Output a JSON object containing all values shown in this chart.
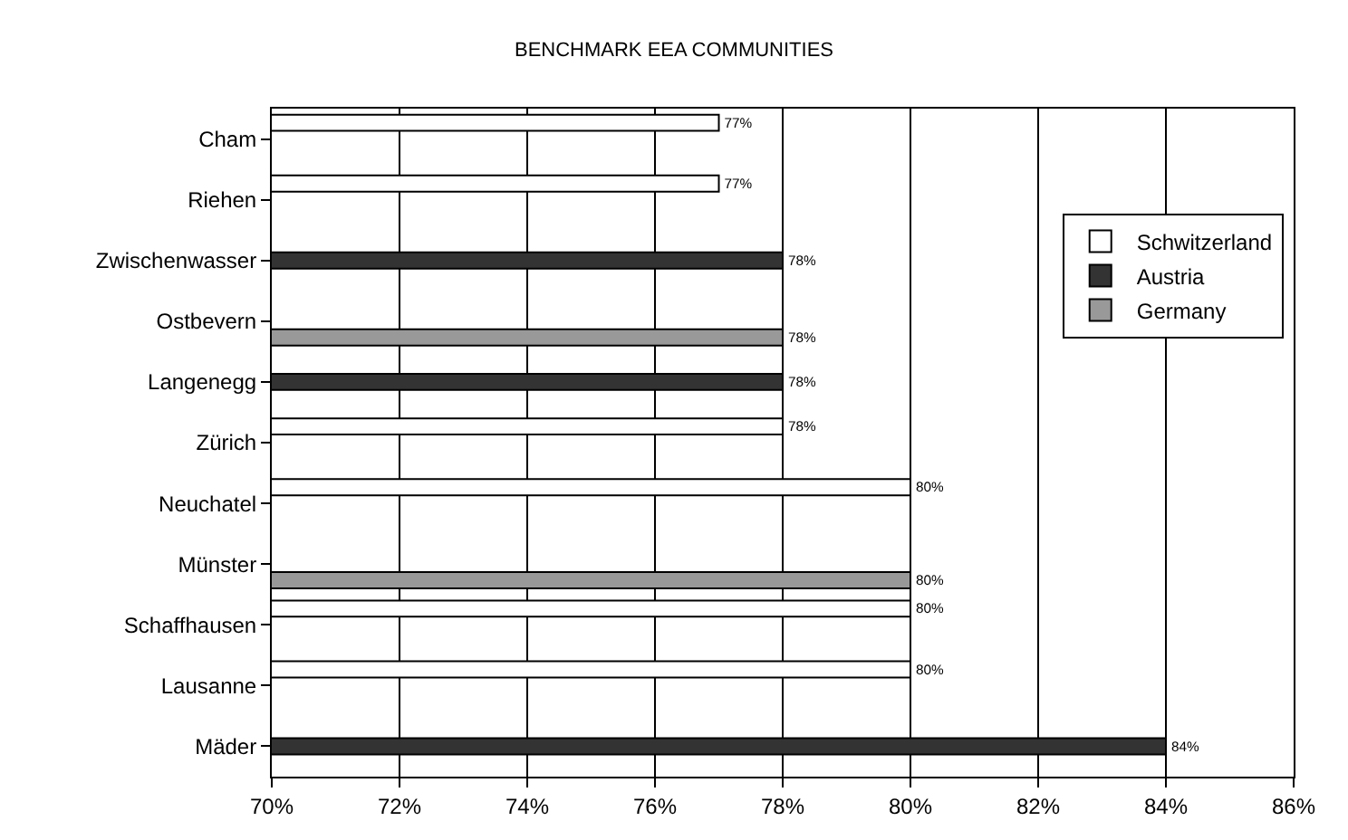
{
  "chart_data": {
    "type": "bar",
    "orientation": "horizontal",
    "title": "BENCHMARK EEA COMMUNITIES",
    "categories": [
      "Cham",
      "Riehen",
      "Zwischenwasser",
      "Ostbevern",
      "Langenegg",
      "Zürich",
      "Neuchatel",
      "Münster",
      "Schaffhausen",
      "Lausanne",
      "Mäder"
    ],
    "series": [
      {
        "name": "Schwitzerland",
        "color": "#ffffff",
        "values": [
          77,
          77,
          null,
          null,
          null,
          78,
          80,
          null,
          80,
          80,
          null
        ],
        "value_labels": [
          "77%",
          "77%",
          null,
          null,
          null,
          "78%",
          "80%",
          null,
          "80%",
          "80%",
          null
        ]
      },
      {
        "name": "Austria",
        "color": "#333333",
        "values": [
          null,
          null,
          78,
          null,
          78,
          null,
          null,
          null,
          null,
          null,
          84
        ],
        "value_labels": [
          null,
          null,
          "78%",
          null,
          "78%",
          null,
          null,
          null,
          null,
          null,
          "84%"
        ]
      },
      {
        "name": "Germany",
        "color": "#999999",
        "values": [
          null,
          null,
          null,
          78,
          null,
          null,
          null,
          80,
          null,
          null,
          null
        ],
        "value_labels": [
          null,
          null,
          null,
          "78%",
          null,
          null,
          null,
          "80%",
          null,
          null,
          null
        ]
      }
    ],
    "xlim": [
      70,
      86
    ],
    "xticks": [
      {
        "value": 70,
        "label": "70%"
      },
      {
        "value": 72,
        "label": "72%"
      },
      {
        "value": 74,
        "label": "74%"
      },
      {
        "value": 76,
        "label": "76%"
      },
      {
        "value": 78,
        "label": "78%"
      },
      {
        "value": 80,
        "label": "80%"
      },
      {
        "value": 82,
        "label": "82%"
      },
      {
        "value": 84,
        "label": "84%"
      },
      {
        "value": 86,
        "label": "86%"
      }
    ],
    "grid": "x",
    "legend": "right"
  }
}
